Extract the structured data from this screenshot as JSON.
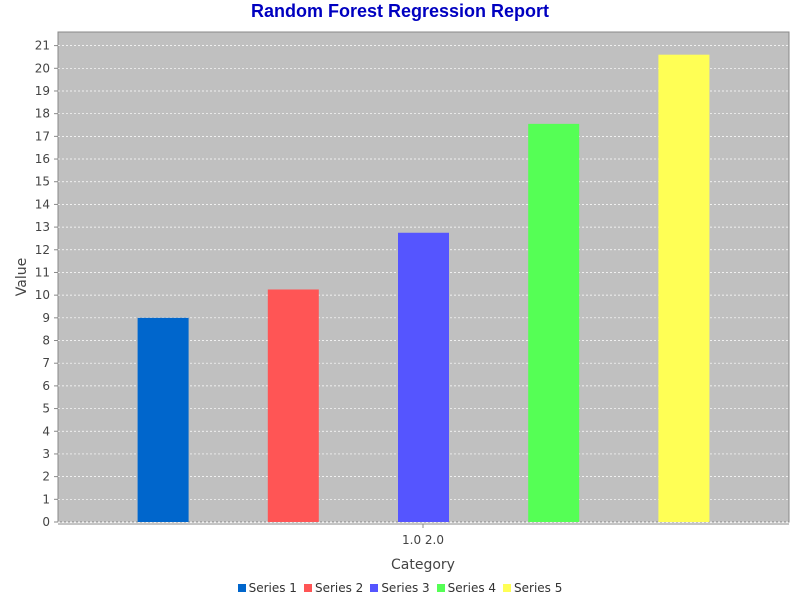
{
  "chart_data": {
    "type": "bar",
    "title": "Random Forest Regression Report",
    "xlabel": "Category",
    "ylabel": "Value",
    "categories": [
      "1.0 2.0"
    ],
    "ylim": [
      0,
      21.6
    ],
    "yticks": [
      0,
      1,
      2,
      3,
      4,
      5,
      6,
      7,
      8,
      9,
      10,
      11,
      12,
      13,
      14,
      15,
      16,
      17,
      18,
      19,
      20,
      21
    ],
    "grid": true,
    "legend_position": "bottom",
    "plot_background": "#c0c0c0",
    "series": [
      {
        "name": "Series 1",
        "values": [
          9.0
        ],
        "color": "#0066cc"
      },
      {
        "name": "Series 2",
        "values": [
          10.25
        ],
        "color": "#ff5555"
      },
      {
        "name": "Series 3",
        "values": [
          12.75
        ],
        "color": "#5555ff"
      },
      {
        "name": "Series 4",
        "values": [
          17.55
        ],
        "color": "#55ff55"
      },
      {
        "name": "Series 5",
        "values": [
          20.6
        ],
        "color": "#ffff55"
      }
    ]
  }
}
